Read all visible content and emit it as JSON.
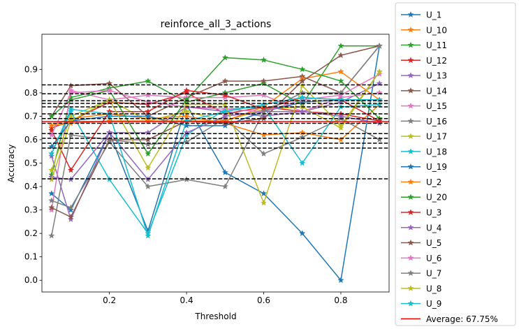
{
  "chart_data": {
    "type": "line",
    "title": "reinforce_all_3_actions",
    "xlabel": "Threshold",
    "ylabel": "Accuracy",
    "xlim": [
      0.025,
      0.925
    ],
    "ylim": [
      -0.05,
      1.05
    ],
    "xticks": [
      0.2,
      0.4,
      0.6,
      0.8
    ],
    "xtick_labels": [
      "0.2",
      "0.4",
      "0.6",
      "0.8"
    ],
    "yticks": [
      0.0,
      0.1,
      0.2,
      0.3,
      0.4,
      0.5,
      0.6,
      0.7,
      0.8,
      0.9
    ],
    "ytick_labels": [
      "0.0",
      "0.1",
      "0.2",
      "0.3",
      "0.4",
      "0.5",
      "0.6",
      "0.7",
      "0.8",
      "0.9"
    ],
    "grid": false,
    "legend_position": "outside-right",
    "x": [
      0.05,
      0.1,
      0.2,
      0.3,
      0.4,
      0.5,
      0.6,
      0.7,
      0.8,
      0.9
    ],
    "series": [
      {
        "name": "U_1",
        "color": "#1f77b4",
        "values": [
          0.37,
          0.3,
          0.63,
          0.21,
          0.75,
          0.46,
          0.37,
          0.2,
          0.0,
          1.0
        ]
      },
      {
        "name": "U_10",
        "color": "#ff7f0e",
        "values": [
          0.66,
          0.69,
          0.71,
          0.69,
          0.7,
          0.67,
          0.62,
          0.63,
          0.6,
          0.75
        ]
      },
      {
        "name": "U_11",
        "color": "#2ca02c",
        "values": [
          0.45,
          0.78,
          0.82,
          0.85,
          0.76,
          0.8,
          0.84,
          0.75,
          1.0,
          1.0
        ]
      },
      {
        "name": "U_12",
        "color": "#d62728",
        "values": [
          0.65,
          0.68,
          0.76,
          0.75,
          0.8,
          0.71,
          0.74,
          0.72,
          0.71,
          0.68
        ]
      },
      {
        "name": "U_13",
        "color": "#9467bd",
        "values": [
          0.53,
          0.26,
          0.63,
          0.63,
          0.74,
          0.72,
          0.7,
          0.72,
          0.76,
          0.84
        ]
      },
      {
        "name": "U_14",
        "color": "#8c564b",
        "values": [
          0.7,
          0.83,
          0.84,
          0.7,
          0.78,
          0.85,
          0.85,
          0.87,
          0.8,
          1.0
        ]
      },
      {
        "name": "U_15",
        "color": "#e377c2",
        "values": [
          0.3,
          0.81,
          0.77,
          0.79,
          0.78,
          0.78,
          0.79,
          0.72,
          0.78,
          0.8
        ]
      },
      {
        "name": "U_16",
        "color": "#7f7f7f",
        "values": [
          0.19,
          0.62,
          0.6,
          0.58,
          0.59,
          0.69,
          0.54,
          0.61,
          0.69,
          0.6
        ]
      },
      {
        "name": "U_17",
        "color": "#bcbd22",
        "values": [
          0.47,
          0.7,
          0.77,
          0.68,
          0.72,
          0.68,
          0.73,
          0.74,
          0.65,
          0.89
        ]
      },
      {
        "name": "U_18",
        "color": "#17becf",
        "values": [
          0.54,
          0.72,
          0.43,
          0.2,
          0.62,
          0.73,
          0.74,
          0.5,
          0.74,
          0.75
        ]
      },
      {
        "name": "U_19",
        "color": "#1f77b4",
        "values": [
          0.57,
          0.68,
          0.7,
          0.7,
          0.66,
          0.66,
          0.72,
          0.76,
          0.77,
          0.77
        ]
      },
      {
        "name": "U_2",
        "color": "#ff7f0e",
        "values": [
          0.66,
          0.67,
          0.68,
          0.68,
          0.68,
          0.68,
          0.74,
          0.86,
          0.89,
          0.77
        ]
      },
      {
        "name": "U_20",
        "color": "#2ca02c",
        "values": [
          0.7,
          0.77,
          0.81,
          0.54,
          0.77,
          0.95,
          0.94,
          0.9,
          0.85,
          0.69
        ]
      },
      {
        "name": "U_3",
        "color": "#d62728",
        "values": [
          0.64,
          0.47,
          0.72,
          0.72,
          0.81,
          0.79,
          0.73,
          0.78,
          0.77,
          0.68
        ]
      },
      {
        "name": "U_4",
        "color": "#9467bd",
        "values": [
          0.44,
          0.43,
          0.63,
          0.43,
          0.63,
          0.7,
          0.72,
          0.72,
          0.7,
          0.67
        ]
      },
      {
        "name": "U_5",
        "color": "#8c564b",
        "values": [
          0.31,
          0.27,
          0.6,
          0.6,
          0.68,
          0.67,
          0.69,
          0.85,
          0.96,
          1.0
        ]
      },
      {
        "name": "U_6",
        "color": "#e377c2",
        "values": [
          0.62,
          0.8,
          0.81,
          0.76,
          0.74,
          0.73,
          0.72,
          0.77,
          0.79,
          0.88
        ]
      },
      {
        "name": "U_7",
        "color": "#7f7f7f",
        "values": [
          0.34,
          0.31,
          0.59,
          0.4,
          0.43,
          0.4,
          0.72,
          0.8,
          0.8,
          1.0
        ]
      },
      {
        "name": "U_8",
        "color": "#bcbd22",
        "values": [
          0.43,
          0.68,
          0.77,
          0.48,
          0.75,
          0.75,
          0.33,
          0.83,
          0.66,
          0.89
        ]
      },
      {
        "name": "U_9",
        "color": "#17becf",
        "values": [
          0.54,
          0.73,
          0.71,
          0.19,
          0.68,
          0.72,
          0.75,
          0.78,
          0.77,
          0.77
        ]
      }
    ],
    "reference_lines": {
      "style": "dashed",
      "color": "#000000",
      "values": [
        0.433,
        0.564,
        0.585,
        0.606,
        0.626,
        0.67,
        0.69,
        0.71,
        0.74,
        0.755,
        0.766,
        0.796,
        0.834
      ]
    },
    "average_line": {
      "label": "Average: 67.75%",
      "value": 0.6775,
      "color": "#ff0000"
    }
  }
}
